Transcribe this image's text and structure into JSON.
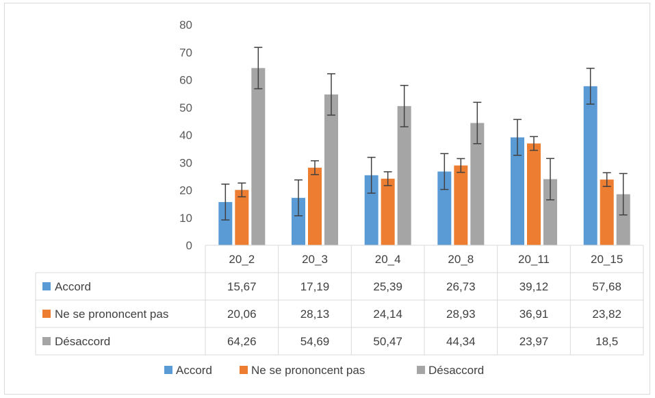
{
  "chart_data": {
    "type": "bar",
    "categories": [
      "20_2",
      "20_3",
      "20_4",
      "20_8",
      "20_11",
      "20_15"
    ],
    "series": [
      {
        "name": "Accord",
        "color": "#5b9bd5",
        "values": [
          15.67,
          17.19,
          25.39,
          26.73,
          39.12,
          57.68
        ],
        "labels": [
          "15,67",
          "17,19",
          "25,39",
          "26,73",
          "39,12",
          "57,68"
        ]
      },
      {
        "name": "Ne se prononcent pas",
        "color": "#ed7d31",
        "values": [
          20.06,
          28.13,
          24.14,
          28.93,
          36.91,
          23.82
        ],
        "labels": [
          "20,06",
          "28,13",
          "24,14",
          "28,93",
          "36,91",
          "23,82"
        ]
      },
      {
        "name": "Désaccord",
        "color": "#a5a5a5",
        "values": [
          64.26,
          54.69,
          50.47,
          44.34,
          23.97,
          18.5
        ],
        "labels": [
          "64,26",
          "54,69",
          "50,47",
          "44,34",
          "23,97",
          "18,5"
        ]
      }
    ],
    "error_bars": [
      [
        6.5,
        6.5,
        6.5,
        6.5,
        6.5,
        6.5
      ],
      [
        2.5,
        2.5,
        2.5,
        2.5,
        2.5,
        2.5
      ],
      [
        7.5,
        7.5,
        7.5,
        7.5,
        7.5,
        7.5
      ]
    ],
    "ylim": [
      0,
      80
    ],
    "yticks": [
      "0",
      "10",
      "20",
      "30",
      "40",
      "50",
      "60",
      "70",
      "80"
    ],
    "grid": false,
    "legend_position": "bottom",
    "data_table": true,
    "error_bar_color": "#404040"
  }
}
